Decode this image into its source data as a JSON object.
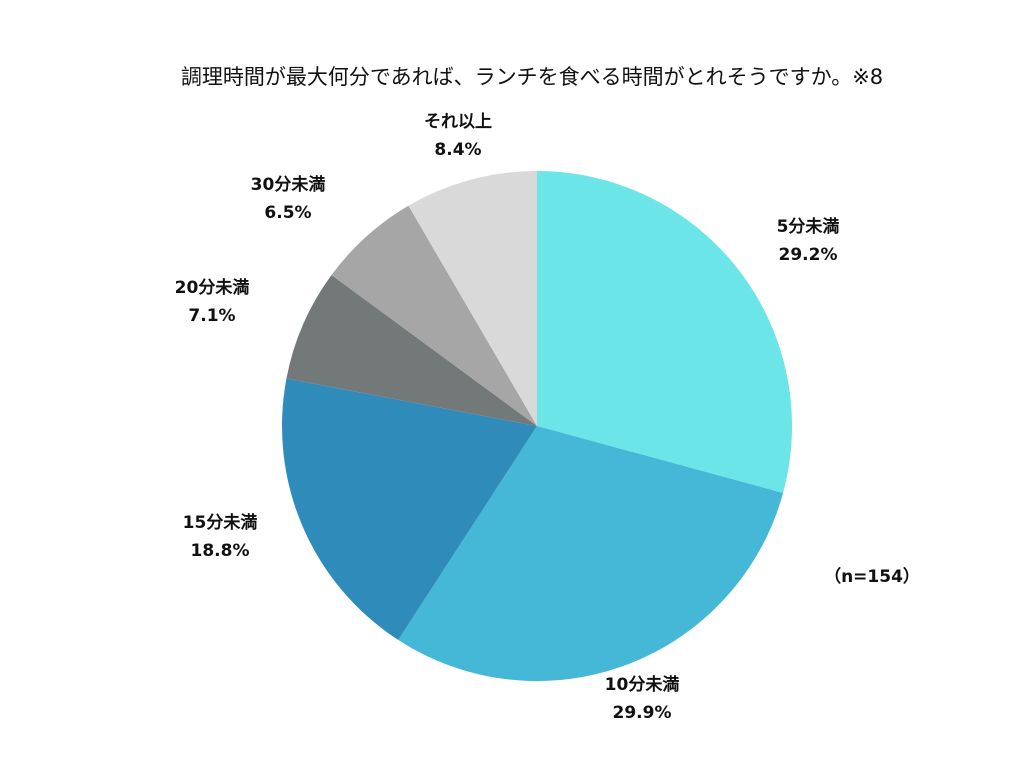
{
  "chart_data": {
    "type": "pie",
    "title": "調理時間が最大何分であれば、ランチを食べる時間がとれそうですか。※8",
    "note": "（n=154）",
    "start": "12 o'clock",
    "direction": "clockwise",
    "slices": [
      {
        "category": "5分未満",
        "value": 29.2,
        "percent_label": "29.2%",
        "color": "#6ce5e8"
      },
      {
        "category": "10分未満",
        "value": 29.9,
        "percent_label": "29.9%",
        "color": "#44b8d6"
      },
      {
        "category": "15分未満",
        "value": 18.8,
        "percent_label": "18.8%",
        "color": "#2e8bba"
      },
      {
        "category": "20分未満",
        "value": 7.1,
        "percent_label": "7.1%",
        "color": "#737878"
      },
      {
        "category": "30分未満",
        "value": 6.5,
        "percent_label": "6.5%",
        "color": "#a6a6a6"
      },
      {
        "category": "それ以上",
        "value": 8.4,
        "percent_label": "8.4%",
        "color": "#d9d9d9"
      }
    ]
  }
}
